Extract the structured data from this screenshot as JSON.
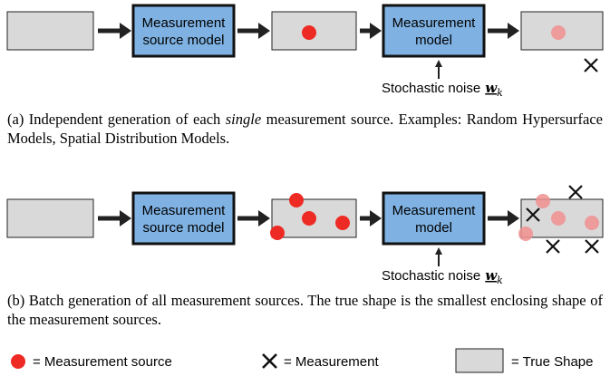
{
  "diagram_a": {
    "source_model": [
      "Measurement",
      "source model"
    ],
    "measurement_model": [
      "Measurement",
      "model"
    ],
    "noise": {
      "text": "Stochastic noise",
      "symbol": "w",
      "subscript": "k"
    }
  },
  "caption_a": {
    "prefix": "(a) Independent generation of each",
    "emphasis": "single",
    "suffix": "measurement source. Examples: Random Hypersurface Models, Spatial Distribution Models."
  },
  "diagram_b": {
    "source_model": [
      "Measurement",
      "source model"
    ],
    "measurement_model": [
      "Measurement",
      "model"
    ],
    "noise": {
      "text": "Stochastic noise",
      "symbol": "w",
      "subscript": "k"
    }
  },
  "caption_b": "(b) Batch generation of all measurement sources. The true shape is the smallest enclosing shape of the measurement sources.",
  "legend": [
    "= Measurement source",
    "= Measurement",
    "= True Shape"
  ]
}
